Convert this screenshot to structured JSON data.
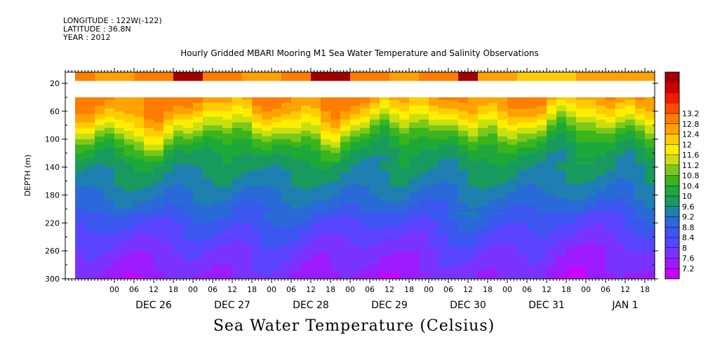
{
  "meta": {
    "longitude": "LONGITUDE : 122W(-122)",
    "latitude": "LATITUDE : 36.8N",
    "year": "YEAR : 2012"
  },
  "title": "Hourly Gridded MBARI Mooring M1 Sea Water Temperature and Salinity Observations",
  "colorbar_title": "Sea Water Temperature (Celsius)",
  "chart_data": {
    "type": "heatmap",
    "title": "Hourly Gridded MBARI Mooring M1 Sea Water Temperature and Salinity Observations",
    "ylabel": "DEPTH (m)",
    "xlabel": "",
    "ylim": [
      300,
      0
    ],
    "yticks": [
      20,
      60,
      100,
      140,
      180,
      220,
      260,
      300
    ],
    "xlim": [
      "2012-12-25T09:00",
      "2013-01-01T21:00"
    ],
    "x_hour_ticks": [
      "00",
      "06",
      "12",
      "18",
      "00",
      "06",
      "12",
      "18",
      "00",
      "06",
      "12",
      "18",
      "00",
      "06",
      "12",
      "18",
      "00",
      "06",
      "12",
      "18",
      "00",
      "06",
      "12",
      "18",
      "00",
      "06",
      "12",
      "18",
      "00",
      "06",
      "12",
      "18"
    ],
    "x_day_labels": [
      "DEC 26",
      "DEC 27",
      "DEC 28",
      "DEC 29",
      "DEC 30",
      "DEC 31",
      "JAN  1"
    ],
    "data_start": "2012-12-25T12:00",
    "colorbar": {
      "levels": [
        7.2,
        7.6,
        8,
        8.4,
        8.8,
        9.2,
        9.6,
        10,
        10.4,
        10.8,
        11.2,
        11.6,
        12,
        12.4,
        12.8,
        13.2
      ],
      "colors": [
        "#cc00ff",
        "#9e1aff",
        "#7a33ff",
        "#5a44ff",
        "#3c56f0",
        "#2a6ad8",
        "#1f7fb0",
        "#189a5e",
        "#1fa83a",
        "#3ab51e",
        "#7cc81a",
        "#c9e010",
        "#ffee00",
        "#ffcc00",
        "#ffa200",
        "#ff7d00",
        "#ff4a00",
        "#ee1a00",
        "#cc0000",
        "#a00000"
      ]
    },
    "depth_profile": {
      "depths": [
        10,
        45,
        60,
        80,
        100,
        120,
        150,
        180,
        220,
        260,
        290,
        300
      ],
      "temperatures": [
        13.0,
        12.8,
        12.3,
        11.5,
        10.6,
        10.0,
        9.6,
        9.2,
        8.5,
        7.9,
        7.6,
        7.5
      ]
    },
    "no_data_depth_range": [
      15,
      40
    ]
  }
}
